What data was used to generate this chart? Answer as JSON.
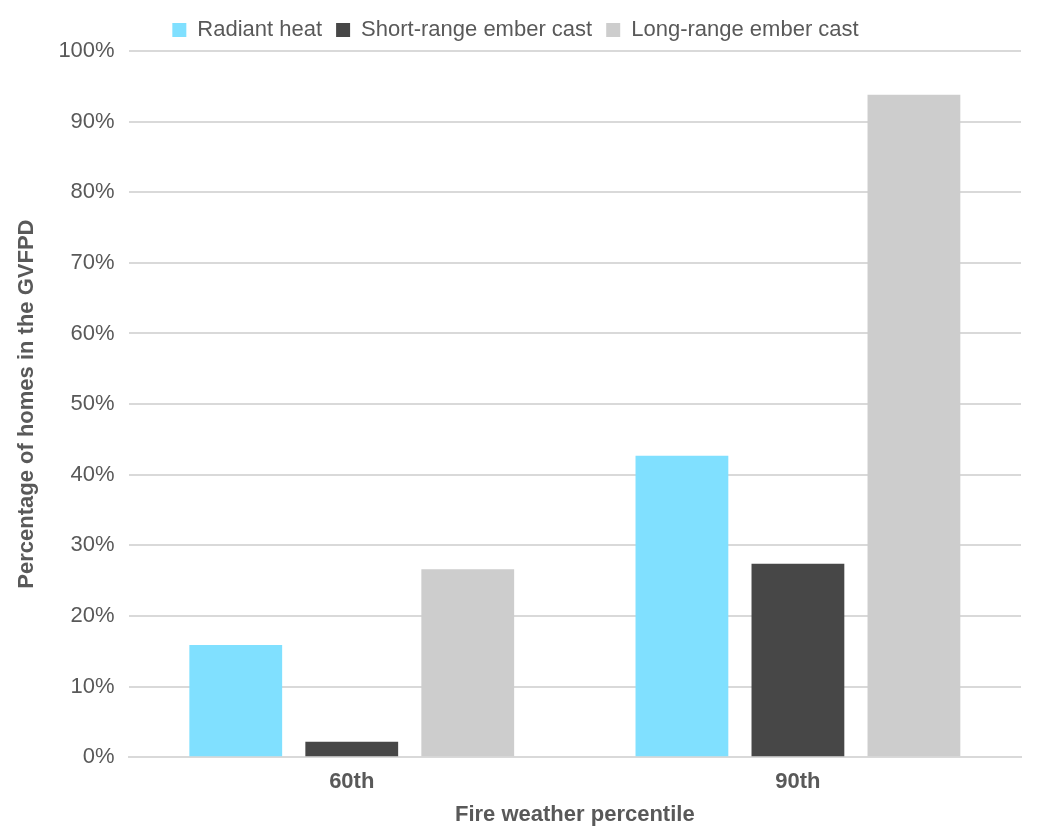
{
  "chart_data": {
    "type": "bar",
    "xlabel": "Fire weather percentile",
    "ylabel": "Percentage of homes in the GVFPD",
    "categories": [
      "60th",
      "90th"
    ],
    "series": [
      {
        "name": "Radiant heat",
        "color": "#80e0ff",
        "values": [
          15.9,
          42.7
        ]
      },
      {
        "name": "Short-range ember cast",
        "color": "#474747",
        "values": [
          2.2,
          27.4
        ]
      },
      {
        "name": "Long-range ember cast",
        "color": "#cdcdcd",
        "values": [
          26.6,
          93.8
        ]
      }
    ],
    "ylim": [
      0,
      100
    ],
    "yticks": [
      {
        "value": 0,
        "label": "0%"
      },
      {
        "value": 10,
        "label": "10%"
      },
      {
        "value": 20,
        "label": "20%"
      },
      {
        "value": 30,
        "label": "30%"
      },
      {
        "value": 40,
        "label": "40%"
      },
      {
        "value": 50,
        "label": "50%"
      },
      {
        "value": 60,
        "label": "60%"
      },
      {
        "value": 70,
        "label": "70%"
      },
      {
        "value": 80,
        "label": "80%"
      },
      {
        "value": 90,
        "label": "90%"
      },
      {
        "value": 100,
        "label": "100%"
      }
    ],
    "grid": "y",
    "legend": "top"
  }
}
